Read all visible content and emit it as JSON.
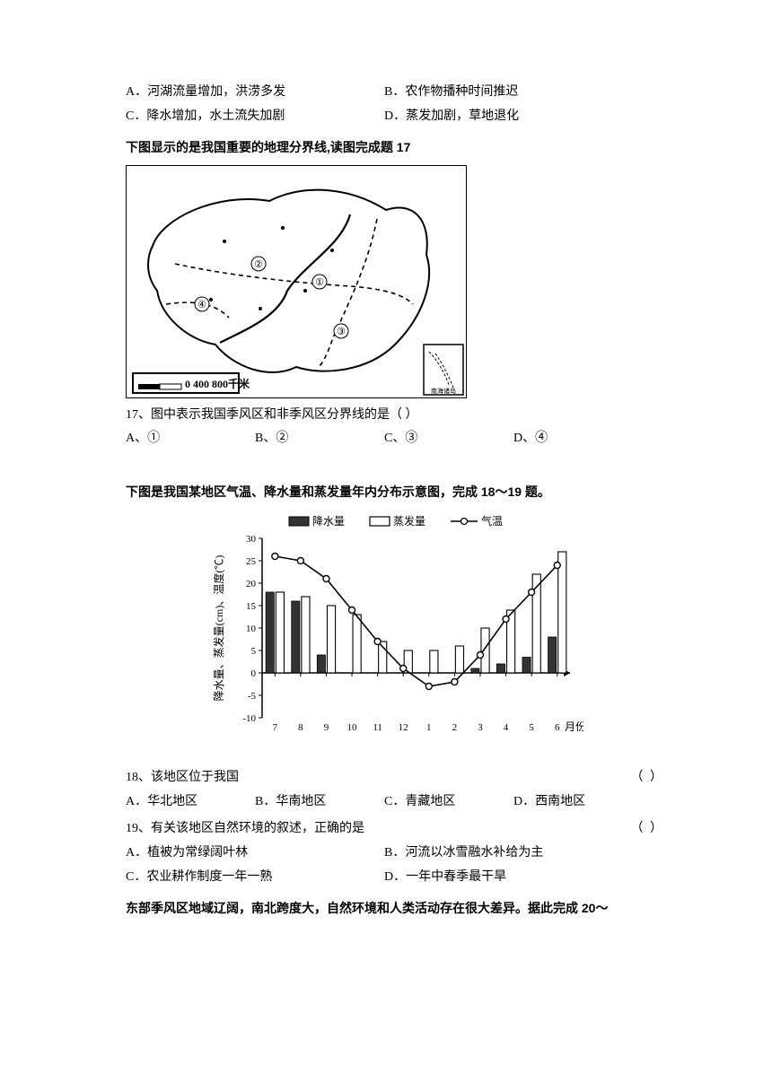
{
  "prev_options": {
    "a": "A．河湖流量增加，洪涝多发",
    "b": "B．农作物播种时间推迟",
    "c": "C．降水增加，水土流失加剧",
    "d": "D．蒸发加剧，草地退化"
  },
  "section17": {
    "title": "下图显示的是我国重要的地理分界线,读图完成题 17",
    "map": {
      "scale_label": "0 400 800千米",
      "inset_label": "南海诸岛",
      "markers": [
        "①",
        "②",
        "③",
        "④"
      ],
      "outline_stroke": "#000000",
      "dashed_color": "#000000",
      "background": "#ffffff"
    },
    "question": "17、图中表示我国季风区和非季风区分界线的是（  ）",
    "options": {
      "a": "A、①",
      "b": "B、②",
      "c": "C、③",
      "d": "D、④"
    }
  },
  "section18_19": {
    "title": "下图是我国某地区气温、降水量和蒸发量年内分布示意图，完成 18～19 题。",
    "chart": {
      "type": "bar+line",
      "legend": {
        "a": "降水量",
        "b": "蒸发量",
        "c": "气温"
      },
      "x_labels_raw": [
        "7",
        "8",
        "9",
        "10",
        "11",
        "12",
        "1",
        "2",
        "3",
        "4",
        "5",
        "6"
      ],
      "x_axis_label": "月份",
      "y_axis_label": "降水量、蒸发量(cm)、温度(℃)",
      "ylim": [
        -10,
        30
      ],
      "yticks": [
        -10,
        -5,
        0,
        5,
        10,
        15,
        20,
        25,
        30
      ],
      "precipitation": [
        18,
        16,
        4,
        0,
        0,
        0,
        0,
        0,
        1,
        2,
        3.5,
        8
      ],
      "evaporation": [
        18,
        17,
        15,
        13,
        7,
        5,
        5,
        6,
        10,
        14,
        22,
        27
      ],
      "temperature": [
        26,
        25,
        21,
        14,
        7,
        1,
        -3,
        -2,
        4,
        12,
        18,
        24
      ],
      "bar_fill_precip": "#333333",
      "bar_fill_evap": "#ffffff",
      "bar_stroke": "#000000",
      "line_color": "#000000",
      "background_color": "#ffffff",
      "grid_color": "#e0e0e0",
      "font_size_axis": 11,
      "font_size_label": 12,
      "font_size_legend": 12
    },
    "q18": {
      "text": "18、该地区位于我国",
      "paren": "（    ）",
      "options": {
        "a": "A．华北地区",
        "b": "B．华南地区",
        "c": "C．青藏地区",
        "d": "D．西南地区"
      }
    },
    "q19": {
      "text": "19、有关该地区自然环境的叙述，正确的是",
      "paren": "（    ）",
      "options": {
        "a": "A．植被为常绿阔叶林",
        "b": "B．河流以冰雪融水补给为主",
        "c": "C．农业耕作制度一年一熟",
        "d": "D．一年中春季最干旱"
      }
    }
  },
  "section20": {
    "title": "东部季风区地域辽阔，南北跨度大，自然环境和人类活动存在很大差异。据此完成 20～"
  }
}
